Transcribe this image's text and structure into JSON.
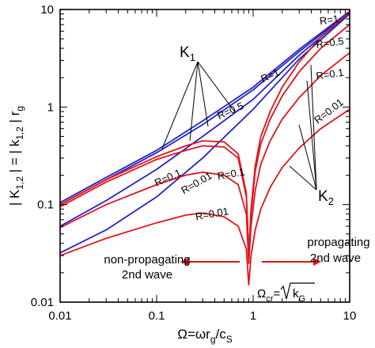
{
  "chart_data": {
    "type": "line",
    "xscale": "log",
    "yscale": "log",
    "xlim": [
      0.01,
      10
    ],
    "ylim": [
      0.01,
      10
    ],
    "xticks": [
      "0.01",
      "0.1",
      "1",
      "10"
    ],
    "yticks": [
      "0.01",
      "0.1",
      "1",
      "10"
    ],
    "xlabel_parts": [
      "Ω=ωr",
      "g",
      "/c",
      "S"
    ],
    "ylabel_parts": [
      "| K",
      "1,2",
      " | = | k",
      "1,2",
      " | r",
      "g"
    ],
    "colors": {
      "K1": "#1f24c8",
      "K2": "#e0141c"
    },
    "series": [
      {
        "group": "K1",
        "label": "R=1",
        "x": [
          0.01,
          0.03,
          0.1,
          0.3,
          1,
          3,
          10
        ],
        "y": [
          0.105,
          0.19,
          0.36,
          0.72,
          1.6,
          3.9,
          9.6
        ]
      },
      {
        "group": "K1",
        "label": "R=0.5",
        "x": [
          0.01,
          0.03,
          0.1,
          0.3,
          1,
          3,
          10
        ],
        "y": [
          0.1,
          0.18,
          0.34,
          0.66,
          1.5,
          3.7,
          9.4
        ]
      },
      {
        "group": "K1",
        "label": "R=0.1",
        "x": [
          0.01,
          0.03,
          0.1,
          0.3,
          1,
          3,
          10
        ],
        "y": [
          0.06,
          0.11,
          0.23,
          0.5,
          1.2,
          3.4,
          9.2
        ]
      },
      {
        "group": "K1",
        "label": "R=0.01",
        "x": [
          0.01,
          0.03,
          0.1,
          0.3,
          1,
          3,
          10
        ],
        "y": [
          0.032,
          0.055,
          0.12,
          0.3,
          0.95,
          3.1,
          9.0
        ]
      },
      {
        "group": "K2",
        "label": "R=1",
        "x": [
          0.01,
          0.03,
          0.1,
          0.2,
          0.3,
          0.5,
          0.7,
          0.85,
          0.9,
          0.95,
          1.05,
          1.2,
          1.5,
          2,
          3,
          5,
          10
        ],
        "y": [
          0.1,
          0.18,
          0.31,
          0.4,
          0.45,
          0.44,
          0.33,
          0.13,
          0.03,
          0.09,
          0.25,
          0.5,
          0.9,
          1.6,
          2.9,
          5.2,
          9.4
        ]
      },
      {
        "group": "K2",
        "label": "R=0.5",
        "x": [
          0.01,
          0.03,
          0.1,
          0.2,
          0.3,
          0.5,
          0.7,
          0.85,
          0.9,
          0.95,
          1.05,
          1.2,
          1.5,
          2,
          3,
          5,
          10
        ],
        "y": [
          0.095,
          0.17,
          0.29,
          0.36,
          0.4,
          0.39,
          0.3,
          0.12,
          0.03,
          0.08,
          0.22,
          0.42,
          0.75,
          1.3,
          2.3,
          4.0,
          7.0
        ]
      },
      {
        "group": "K2",
        "label": "R=0.1",
        "x": [
          0.01,
          0.03,
          0.1,
          0.2,
          0.3,
          0.5,
          0.7,
          0.85,
          0.9,
          0.95,
          1.05,
          1.2,
          1.5,
          2,
          3,
          5,
          10
        ],
        "y": [
          0.058,
          0.1,
          0.16,
          0.2,
          0.215,
          0.2,
          0.16,
          0.08,
          0.025,
          0.06,
          0.14,
          0.26,
          0.45,
          0.75,
          1.25,
          2.1,
          3.6
        ]
      },
      {
        "group": "K2",
        "label": "R=0.01",
        "x": [
          0.01,
          0.03,
          0.1,
          0.2,
          0.3,
          0.5,
          0.7,
          0.85,
          0.9,
          0.95,
          1.05,
          1.2,
          1.5,
          2,
          3,
          5,
          10
        ],
        "y": [
          0.03,
          0.045,
          0.065,
          0.078,
          0.082,
          0.075,
          0.06,
          0.035,
          0.015,
          0.03,
          0.055,
          0.09,
          0.15,
          0.24,
          0.38,
          0.6,
          0.95
        ]
      }
    ],
    "curve_labels": [
      {
        "text": "R=1",
        "x": 1.55,
        "y": 1.95,
        "rot": -24,
        "size": 13
      },
      {
        "text": "R=0.5",
        "x": 0.6,
        "y": 0.85,
        "rot": -24,
        "size": 13
      },
      {
        "text": "R=0.1",
        "x": 0.135,
        "y": 0.175,
        "rot": -24,
        "size": 13
      },
      {
        "text": "R=0.1",
        "x": 0.6,
        "y": 0.19,
        "rot": -10,
        "size": 13
      },
      {
        "text": "R=0.01",
        "x": 0.38,
        "y": 0.074,
        "rot": -10,
        "size": 13
      },
      {
        "text": "R=0.01",
        "x": 0.27,
        "y": 0.155,
        "rot": -30,
        "size": 13
      },
      {
        "text": "R=1",
        "x": 6.2,
        "y": 7.2,
        "rot": -8,
        "size": 13
      },
      {
        "text": "R=0.5",
        "x": 6.3,
        "y": 4.2,
        "rot": -8,
        "size": 13
      },
      {
        "text": "R=0.1",
        "x": 6.3,
        "y": 2.0,
        "rot": -8,
        "size": 13
      },
      {
        "text": "R=0.01",
        "x": 6.4,
        "y": 0.85,
        "rot": -38,
        "size": 13
      }
    ],
    "annotations": {
      "k1_main": "K",
      "k1_sub": "1",
      "k2_main": "K",
      "k2_sub": "2",
      "nonprop_line1": "non-propagating",
      "nonprop_line2": "2nd wave",
      "prop_line1": "propagating",
      "prop_line2": "2nd wave",
      "omega_cr_main": "Ω",
      "omega_cr_sub": "cr",
      "omega_cr_eq": "=",
      "omega_cr_rad": "k",
      "omega_cr_rad_sub": "G"
    }
  }
}
